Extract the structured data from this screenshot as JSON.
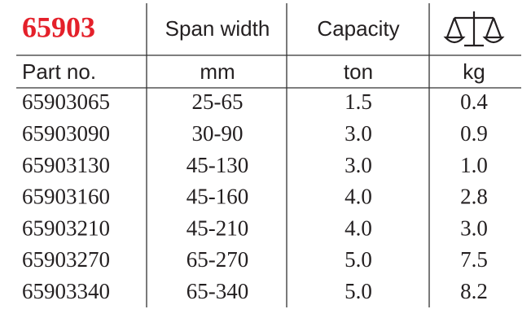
{
  "header": {
    "title": "65903",
    "columns": [
      "Span width",
      "Capacity"
    ]
  },
  "units": [
    "Part no.",
    "mm",
    "ton",
    "kg"
  ],
  "rows": [
    [
      "65903065",
      "25-65",
      "1.5",
      "0.4"
    ],
    [
      "65903090",
      "30-90",
      "3.0",
      "0.9"
    ],
    [
      "65903130",
      "45-130",
      "3.0",
      "1.0"
    ],
    [
      "65903160",
      "45-160",
      "4.0",
      "2.8"
    ],
    [
      "65903210",
      "45-210",
      "4.0",
      "3.0"
    ],
    [
      "65903270",
      "65-270",
      "5.0",
      "7.5"
    ],
    [
      "65903340",
      "65-340",
      "5.0",
      "8.2"
    ]
  ]
}
